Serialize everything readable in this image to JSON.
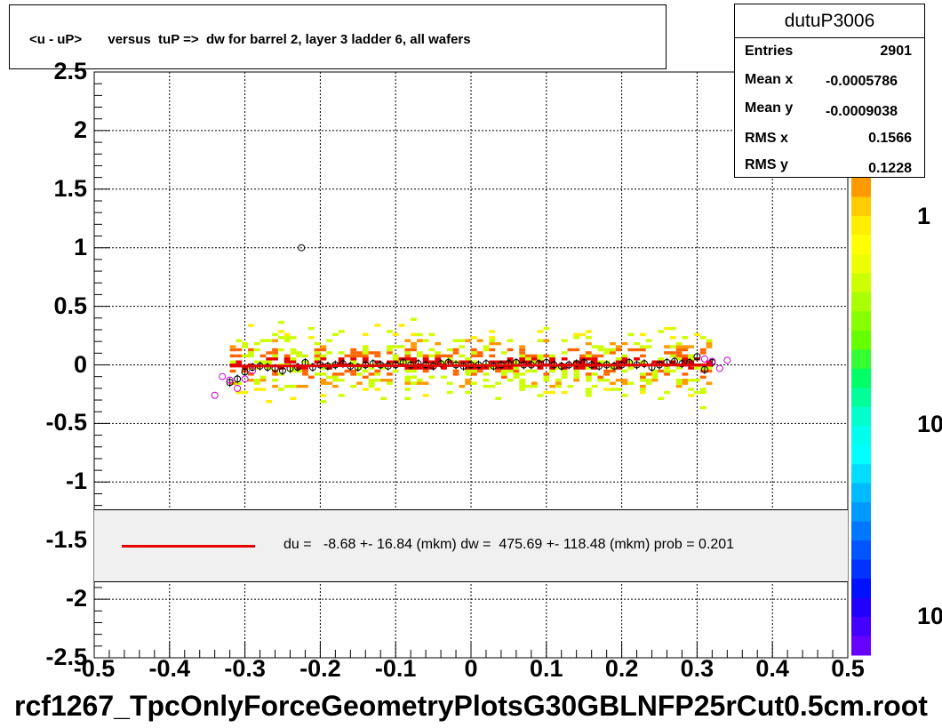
{
  "title": "<u - uP>       versus  tuP =>  dw for barrel 2, layer 3 ladder 6, all wafers",
  "stats": {
    "name": "dutuP3006",
    "rows": [
      {
        "label": "Entries",
        "value": "2901"
      },
      {
        "label": "Mean x",
        "value": "-0.0005786"
      },
      {
        "label": "Mean y",
        "value": "-0.0009038"
      },
      {
        "label": "RMS x",
        "value": "0.1566"
      },
      {
        "label": "RMS y",
        "value": "0.1228"
      }
    ]
  },
  "fit": {
    "text": "du =   -8.68 +- 16.84 (mkm) dw =  475.69 +- 118.48 (mkm) prob = 0.201",
    "line_color": "#e60000"
  },
  "footer": "rcf1267_TpcOnlyForceGeometryPlotsG30GBLNFP25rCut0.5cm.root",
  "palette_labels": [
    "1",
    "10",
    "10"
  ],
  "chart_data": {
    "type": "heatmap",
    "title": "<u - uP>       versus  tuP =>  dw for barrel 2, layer 3 ladder 6, all wafers",
    "xlim": [
      -0.5,
      0.5
    ],
    "ylim": [
      -2.5,
      2.5
    ],
    "x_ticks": [
      "-0.5",
      "-0.4",
      "-0.3",
      "-0.2",
      "-0.1",
      "0",
      "0.1",
      "0.2",
      "0.3",
      "0.4",
      "0.5"
    ],
    "y_ticks": [
      "-2.5",
      "-2",
      "-1.5",
      "-1",
      "-0.5",
      "0",
      "0.5",
      "1",
      "1.5",
      "2",
      "2.5"
    ],
    "grid": true,
    "band": {
      "x_range": [
        -0.32,
        0.32
      ],
      "y_center": 0.0,
      "y_half_width": 0.35
    },
    "profile_means": {
      "x": [
        -0.32,
        -0.31,
        -0.3,
        -0.29,
        -0.28,
        -0.27,
        -0.26,
        -0.25,
        -0.24,
        -0.23,
        -0.22,
        -0.21,
        -0.2,
        -0.19,
        -0.18,
        -0.17,
        -0.16,
        -0.15,
        -0.14,
        -0.13,
        -0.12,
        -0.11,
        -0.1,
        -0.09,
        -0.08,
        -0.07,
        -0.06,
        -0.05,
        -0.04,
        -0.03,
        -0.02,
        -0.01,
        0.0,
        0.01,
        0.02,
        0.03,
        0.04,
        0.05,
        0.06,
        0.07,
        0.08,
        0.09,
        0.1,
        0.11,
        0.12,
        0.13,
        0.14,
        0.15,
        0.16,
        0.17,
        0.18,
        0.19,
        0.2,
        0.21,
        0.22,
        0.23,
        0.24,
        0.25,
        0.26,
        0.27,
        0.28,
        0.29,
        0.3,
        0.31,
        0.32
      ],
      "y": [
        -0.15,
        -0.12,
        -0.06,
        -0.02,
        -0.01,
        -0.02,
        -0.03,
        -0.05,
        -0.03,
        -0.02,
        0.02,
        -0.02,
        0.0,
        -0.01,
        0.0,
        0.01,
        -0.01,
        -0.02,
        0.0,
        0.01,
        0.0,
        -0.01,
        0.0,
        0.02,
        0.0,
        0.01,
        0.0,
        -0.01,
        0.01,
        0.02,
        0.0,
        -0.01,
        0.0,
        0.0,
        0.01,
        -0.01,
        0.0,
        0.01,
        0.02,
        0.0,
        0.0,
        0.01,
        0.02,
        0.0,
        -0.01,
        0.0,
        0.01,
        0.02,
        0.0,
        -0.01,
        0.0,
        -0.01,
        0.0,
        0.02,
        0.0,
        0.01,
        -0.02,
        0.0,
        0.02,
        0.03,
        0.01,
        0.02,
        0.07,
        -0.04,
        0.02
      ]
    },
    "profile_second": {
      "x": [
        -0.34,
        -0.33,
        -0.32,
        -0.31,
        -0.3,
        -0.29,
        0.31,
        0.32,
        0.33,
        0.34
      ],
      "y": [
        -0.26,
        -0.1,
        -0.13,
        -0.2,
        -0.12,
        -0.05,
        0.05,
        0.03,
        -0.03,
        0.04
      ]
    },
    "outliers": [
      {
        "x": -0.225,
        "y": 1.0
      }
    ],
    "fit_line": {
      "x": [
        -0.32,
        0.32
      ],
      "y": [
        -0.01,
        0.0
      ]
    }
  }
}
